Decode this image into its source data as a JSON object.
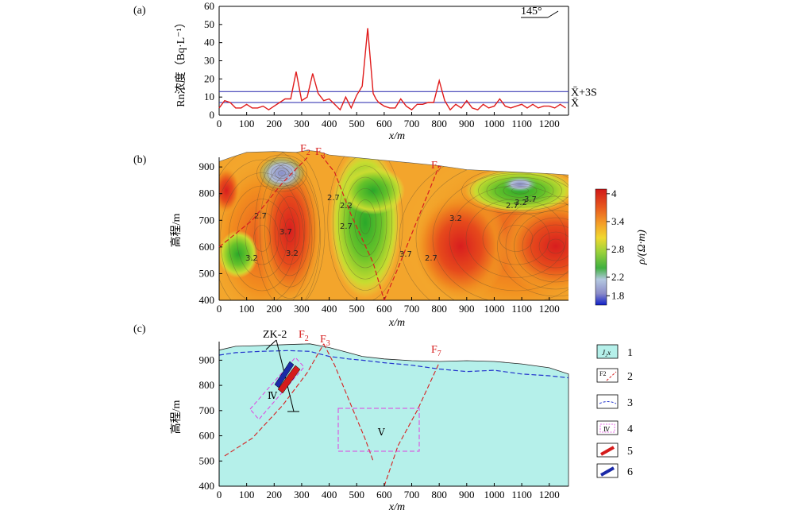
{
  "colors": {
    "rn_line": "#e01b1b",
    "threshold_line": "#3b3bb5",
    "fault": "#d62020",
    "surface_dashed": "#2233cc",
    "bedrock_fill": "#b5f0ea",
    "box_magenta": "#e040e0",
    "orebody_red": "#d41c1c",
    "orebody_blue": "#1b2aa8"
  },
  "chart_data": [
    {
      "panel": "(a)",
      "type": "line",
      "title": "",
      "orientation_marker": "145°",
      "xlabel": "x/m",
      "ylabel": "Rn浓度（Bq·L⁻¹）",
      "xlim": [
        0,
        1270
      ],
      "ylim": [
        0,
        60
      ],
      "xticks": [
        0,
        100,
        200,
        300,
        400,
        500,
        600,
        700,
        800,
        900,
        1000,
        1100,
        1200
      ],
      "yticks": [
        0,
        10,
        20,
        30,
        40,
        50,
        60
      ],
      "x": [
        0,
        20,
        40,
        60,
        80,
        100,
        120,
        140,
        160,
        180,
        200,
        220,
        240,
        260,
        280,
        300,
        320,
        340,
        360,
        380,
        400,
        420,
        440,
        460,
        480,
        500,
        520,
        540,
        560,
        570,
        580,
        600,
        620,
        640,
        660,
        680,
        700,
        720,
        740,
        760,
        780,
        800,
        820,
        840,
        860,
        880,
        900,
        920,
        940,
        960,
        980,
        1000,
        1020,
        1040,
        1060,
        1080,
        1100,
        1120,
        1140,
        1160,
        1180,
        1200,
        1220,
        1240,
        1260
      ],
      "series": [
        {
          "values": [
            4,
            8,
            7,
            4,
            4,
            6,
            4,
            4,
            5,
            3,
            5,
            7,
            9,
            9,
            24,
            8,
            10,
            23,
            12,
            8,
            9,
            6,
            3,
            10,
            4,
            11,
            16,
            48,
            12,
            9,
            7,
            5,
            4,
            4,
            9,
            5,
            3,
            6,
            6,
            7,
            7,
            19,
            8,
            3,
            6,
            4,
            8,
            4,
            3,
            6,
            4,
            5,
            9,
            5,
            4,
            5,
            6,
            4,
            6,
            4,
            5,
            5,
            4,
            6,
            4
          ]
        }
      ],
      "reference_lines": [
        {
          "label": "X̄+3S",
          "value": 13
        },
        {
          "label": "X̄",
          "value": 7
        }
      ]
    },
    {
      "panel": "(b)",
      "type": "heatmap",
      "xlabel": "x/m",
      "ylabel": "高程/m",
      "xlim": [
        0,
        1270
      ],
      "ylim": [
        400,
        960
      ],
      "xticks": [
        0,
        100,
        200,
        300,
        400,
        500,
        600,
        700,
        800,
        900,
        1000,
        1100,
        1200
      ],
      "yticks": [
        400,
        500,
        600,
        700,
        800,
        900
      ],
      "colorbar": {
        "title": "ρ/(Ω·m)",
        "ticks": [
          "1.8",
          "2.2",
          "2.8",
          "3.4",
          "4"
        ],
        "range": [
          1.6,
          4.1
        ]
      },
      "contour_labels": [
        "2.7",
        "3.2",
        "3.7",
        "3.2",
        "2.7",
        "2.2",
        "2.7",
        "3.7",
        "2.7",
        "3.2",
        "2.7",
        "3.2",
        "3.7"
      ],
      "faults": [
        "F2",
        "F3",
        "F7"
      ]
    },
    {
      "panel": "(c)",
      "type": "diagram",
      "xlabel": "x/m",
      "ylabel": "高程/m",
      "xlim": [
        0,
        1270
      ],
      "ylim": [
        400,
        980
      ],
      "xticks": [
        0,
        100,
        200,
        300,
        400,
        500,
        600,
        700,
        800,
        900,
        1000,
        1100,
        1200
      ],
      "yticks": [
        400,
        500,
        600,
        700,
        800,
        900
      ],
      "borehole": "ZK-2",
      "zones": [
        "Ⅳ",
        "Ⅴ"
      ],
      "faults": [
        "F2",
        "F3",
        "F7"
      ],
      "surface_profile": [
        [
          0,
          940
        ],
        [
          60,
          955
        ],
        [
          150,
          958
        ],
        [
          250,
          962
        ],
        [
          330,
          965
        ],
        [
          400,
          950
        ],
        [
          470,
          930
        ],
        [
          520,
          915
        ],
        [
          600,
          905
        ],
        [
          700,
          898
        ],
        [
          800,
          895
        ],
        [
          900,
          898
        ],
        [
          1000,
          895
        ],
        [
          1100,
          885
        ],
        [
          1200,
          870
        ],
        [
          1270,
          845
        ]
      ],
      "weathering_profile": [
        [
          0,
          920
        ],
        [
          60,
          930
        ],
        [
          150,
          935
        ],
        [
          250,
          938
        ],
        [
          330,
          935
        ],
        [
          400,
          915
        ],
        [
          470,
          905
        ],
        [
          520,
          900
        ],
        [
          600,
          890
        ],
        [
          700,
          880
        ],
        [
          800,
          865
        ],
        [
          900,
          855
        ],
        [
          1000,
          860
        ],
        [
          1100,
          845
        ],
        [
          1200,
          838
        ],
        [
          1270,
          830
        ]
      ],
      "legend": [
        {
          "num": "1",
          "symbol": "J₂x"
        },
        {
          "num": "2",
          "symbol": "F2"
        },
        {
          "num": "3",
          "symbol": ""
        },
        {
          "num": "4",
          "symbol": "Ⅳ"
        },
        {
          "num": "5",
          "symbol": ""
        },
        {
          "num": "6",
          "symbol": ""
        }
      ]
    }
  ]
}
